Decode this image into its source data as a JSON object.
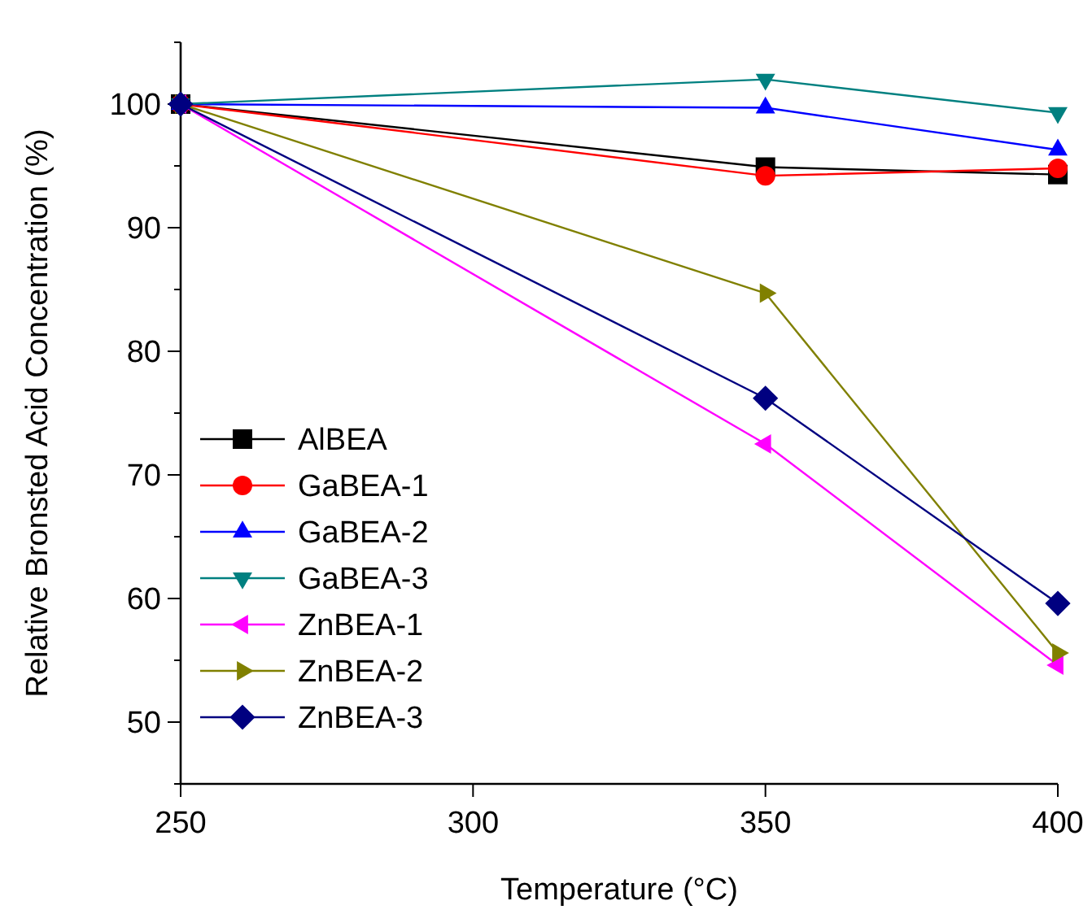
{
  "chart_data": {
    "type": "line",
    "xlabel": "Temperature (°C)",
    "ylabel": "Relative Bronsted Acid Concentration (%)",
    "x": [
      250,
      350,
      400
    ],
    "xlim": [
      250,
      400
    ],
    "xticks": [
      250,
      300,
      350,
      400
    ],
    "ylim": [
      45,
      105
    ],
    "yticks": [
      {
        "value": 45,
        "label": null
      },
      50,
      {
        "value": 55,
        "label": null
      },
      60,
      {
        "value": 65,
        "label": null
      },
      70,
      {
        "value": 75,
        "label": null
      },
      80,
      {
        "value": 85,
        "label": null
      },
      90,
      {
        "value": 95,
        "label": null
      },
      100,
      {
        "value": 105,
        "label": null
      }
    ],
    "legend": "bottom left",
    "grid": false,
    "line_style": "solid",
    "series": [
      {
        "name": "AlBEA",
        "color": "#000000",
        "marker": "square",
        "values": [
          100,
          94.9,
          94.3
        ]
      },
      {
        "name": "GaBEA-1",
        "color": "#ff0000",
        "marker": "circle",
        "values": [
          100,
          94.2,
          94.8
        ]
      },
      {
        "name": "GaBEA-2",
        "color": "#0000ff",
        "marker": "triangle",
        "values": [
          100,
          99.7,
          96.3
        ]
      },
      {
        "name": "GaBEA-3",
        "color": "#008080",
        "marker": "triangle-down",
        "values": [
          100,
          102,
          99.3
        ]
      },
      {
        "name": "ZnBEA-1",
        "color": "#ff00ff",
        "marker": "triangle-left",
        "values": [
          100,
          72.5,
          54.6
        ]
      },
      {
        "name": "ZnBEA-2",
        "color": "#808000",
        "marker": "triangle-right",
        "values": [
          100,
          84.7,
          55.6
        ]
      },
      {
        "name": "ZnBEA-3",
        "color": "#000080",
        "marker": "diamond",
        "values": [
          100,
          76.2,
          59.6
        ]
      }
    ]
  }
}
